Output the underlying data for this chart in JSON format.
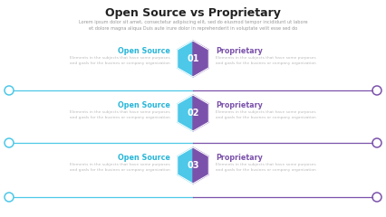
{
  "title": "Open Source vs Proprietary",
  "subtitle": "Lorem ipsum dolor sit amet, consectetur adipiscing elit, sed do eiusmod tempor incididunt ut labore\net dolore magna aliqua Duis aute irure dolor in reprehenderit in voluptate velit esse sed do",
  "rows": [
    {
      "number": "01",
      "left_title": "Open Source",
      "right_title": "Proprietary",
      "body_text": "Elements in the subjects that have some purposes\nand goals for the busines or company organization"
    },
    {
      "number": "02",
      "left_title": "Open Source",
      "right_title": "Proprietary",
      "body_text": "Elements in the subjects that have some purposes\nand goals for the busines or company organization"
    },
    {
      "number": "03",
      "left_title": "Open Source",
      "right_title": "Proprietary",
      "body_text": "Elements in the subjects that have some purposes\nand goals for the busines or company organization"
    }
  ],
  "hex_color_left": "#4dc8e8",
  "hex_color_right": "#7b52ab",
  "left_title_color": "#29b6d8",
  "right_title_color": "#7b52ab",
  "body_text_color": "#bbbbbb",
  "title_color": "#222222",
  "subtitle_color": "#999999",
  "line_color_left": "#4dc8e8",
  "line_color_right": "#7b52ab",
  "circle_left_color": "#4dc8e8",
  "circle_right_color": "#7b52ab",
  "bg_color": "#ffffff",
  "hex_number_color": "#ffffff",
  "figw": 4.26,
  "figh": 2.4,
  "dpi": 100
}
